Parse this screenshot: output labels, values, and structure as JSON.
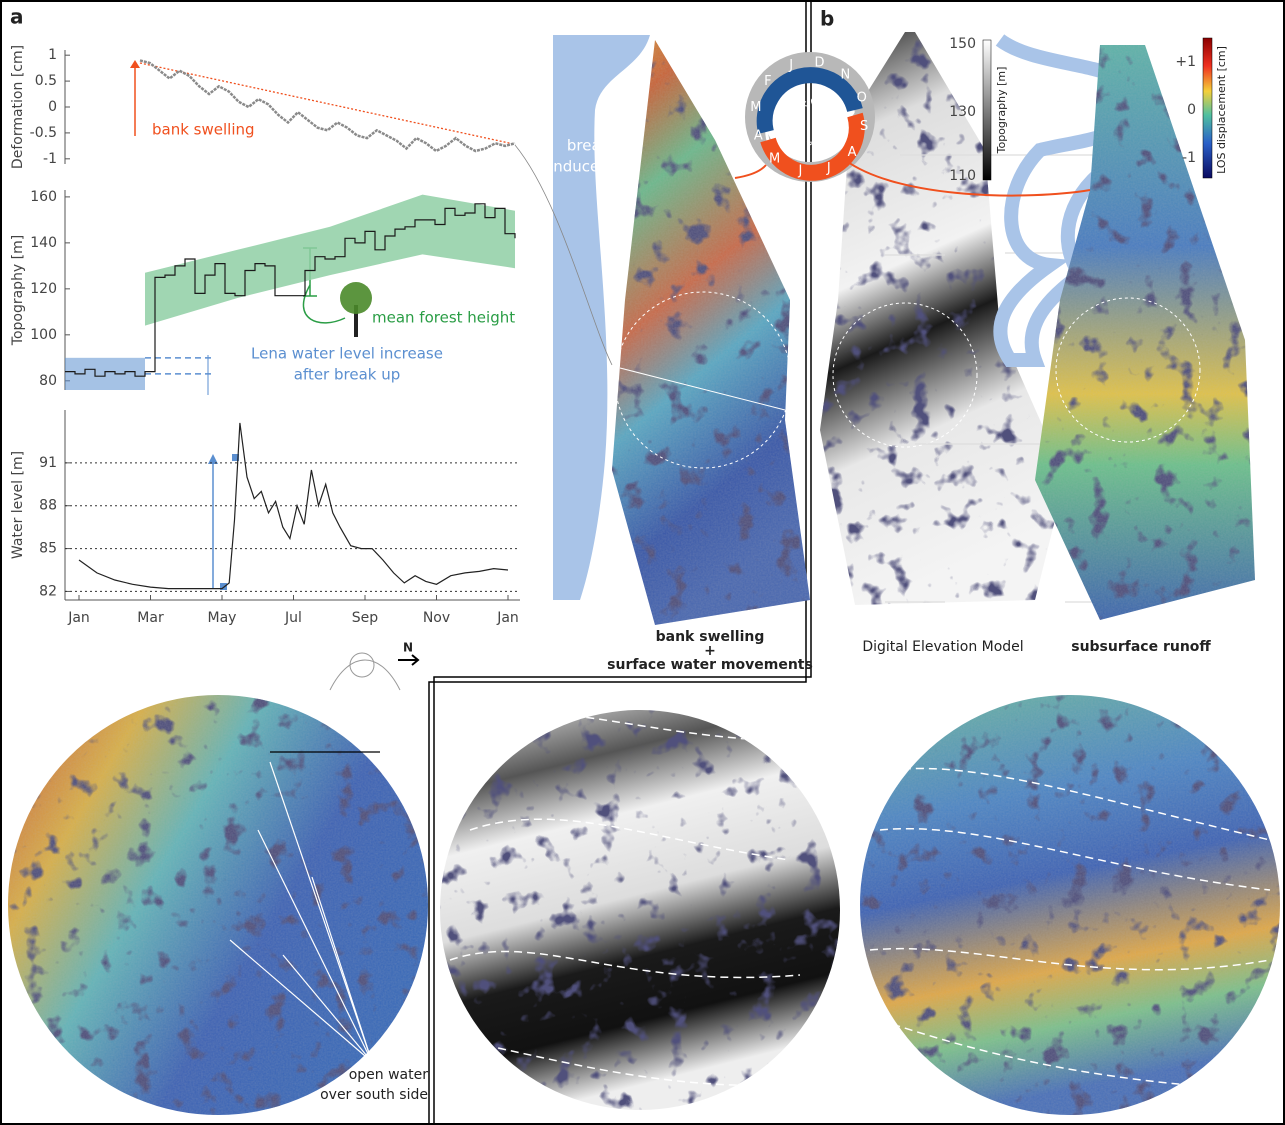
{
  "chart_data": [
    {
      "type": "line",
      "ylabel": "Deformation [cm]",
      "ylim": [
        -1.1,
        1.1
      ],
      "yticks": [
        1,
        0.5,
        0,
        -0.5,
        -1
      ],
      "annotation": "bank swelling",
      "series": [
        {
          "color": "#8a8a8a",
          "values": [
            0.9,
            0.85,
            0.7,
            0.55,
            0.7,
            0.6,
            0.4,
            0.25,
            0.4,
            0.3,
            0.1,
            0.0,
            0.15,
            0.05,
            -0.15,
            -0.3,
            -0.1,
            -0.25,
            -0.4,
            -0.45,
            -0.3,
            -0.4,
            -0.55,
            -0.6,
            -0.45,
            -0.55,
            -0.65,
            -0.8,
            -0.6,
            -0.7,
            -0.85,
            -0.75,
            -0.6,
            -0.75,
            -0.85,
            -0.8,
            -0.7,
            -0.75,
            -0.7
          ]
        }
      ],
      "trend": {
        "color": "#f0501e",
        "values": [
          0.85,
          -0.72
        ]
      }
    },
    {
      "type": "line",
      "ylabel": "Topography [m]",
      "ylim": [
        76,
        163
      ],
      "yticks": [
        80,
        100,
        120,
        140,
        160
      ],
      "annotations": [
        "mean forest height",
        "Lena water level increase",
        "after break up"
      ],
      "series": [
        {
          "color": "#1a1a1a",
          "values": [
            84,
            83,
            85,
            82,
            84,
            83,
            84,
            82,
            84,
            125,
            126,
            130,
            133,
            118,
            126,
            131,
            118,
            117,
            128,
            131,
            130,
            117,
            117,
            117,
            128,
            134,
            133,
            134,
            142,
            140,
            145,
            137,
            143,
            146,
            147,
            150,
            150,
            148,
            155,
            152,
            153,
            157,
            151,
            155,
            144,
            142
          ]
        }
      ],
      "band": {
        "color": "#8fcfa4",
        "lower": [
          104,
          116,
          126,
          135,
          129
        ],
        "upper": [
          127,
          137,
          147,
          161,
          154
        ]
      },
      "lena_levels": {
        "color": "#5b8fd0",
        "values": [
          83,
          90
        ]
      }
    },
    {
      "type": "line",
      "ylabel": "Water level [m]",
      "xlim": [
        0,
        12
      ],
      "ylim": [
        81.4,
        94.7
      ],
      "yticks": [
        82,
        85,
        88,
        91
      ],
      "grid": true,
      "xticks": [
        {
          "value": 0,
          "label": "Jan"
        },
        {
          "value": 2,
          "label": "Mar"
        },
        {
          "value": 4,
          "label": "May"
        },
        {
          "value": 6,
          "label": "Jul"
        },
        {
          "value": 8,
          "label": "Sep"
        },
        {
          "value": 10,
          "label": "Nov"
        },
        {
          "value": 12,
          "label": "Jan"
        }
      ],
      "x": [
        0,
        0.5,
        1,
        1.5,
        2,
        2.5,
        3,
        3.5,
        4,
        4.2,
        4.35,
        4.5,
        4.7,
        4.9,
        5.1,
        5.3,
        5.5,
        5.7,
        5.9,
        6.1,
        6.3,
        6.5,
        6.7,
        6.9,
        7.1,
        7.3,
        7.6,
        7.9,
        8.2,
        8.5,
        8.8,
        9.1,
        9.4,
        9.7,
        10,
        10.4,
        10.8,
        11.2,
        11.6,
        12
      ],
      "series": [
        {
          "color": "#222222",
          "values": [
            84.2,
            83.3,
            82.8,
            82.5,
            82.3,
            82.2,
            82.2,
            82.2,
            82.2,
            82.6,
            87,
            93.8,
            90,
            88.5,
            89,
            87.5,
            88.3,
            86.5,
            85.7,
            88,
            86.7,
            90.5,
            88,
            89.5,
            87.5,
            86.5,
            85.2,
            85,
            85,
            84.2,
            83.3,
            82.6,
            83.1,
            82.7,
            82.5,
            83.1,
            83.3,
            83.4,
            83.6,
            83.5
          ]
        }
      ]
    }
  ],
  "panel_a": {
    "label": "a",
    "flood_label": [
      "break up",
      "induced flood"
    ],
    "caption": [
      "bank swelling",
      "+",
      "surface water movements"
    ],
    "north": "N",
    "open_water": [
      "open water",
      "over south side"
    ]
  },
  "panel_b": {
    "label": "b",
    "dem_caption": "Digital Elevation Model",
    "los_caption": "subsurface runoff",
    "topo_colorbar": {
      "title": "Topography [m]",
      "ticks": [
        "150",
        "130",
        "110"
      ]
    },
    "los_colorbar": {
      "title": "LOS displacement [cm]",
      "ticks": [
        "+1",
        "0",
        "-1"
      ]
    }
  },
  "season_ring": {
    "months": [
      "J",
      "F",
      "M",
      "A",
      "M",
      "J",
      "J",
      "A",
      "S",
      "O",
      "N",
      "D"
    ],
    "cold": "T < 0 °C",
    "warm": "T > 0 °C"
  }
}
